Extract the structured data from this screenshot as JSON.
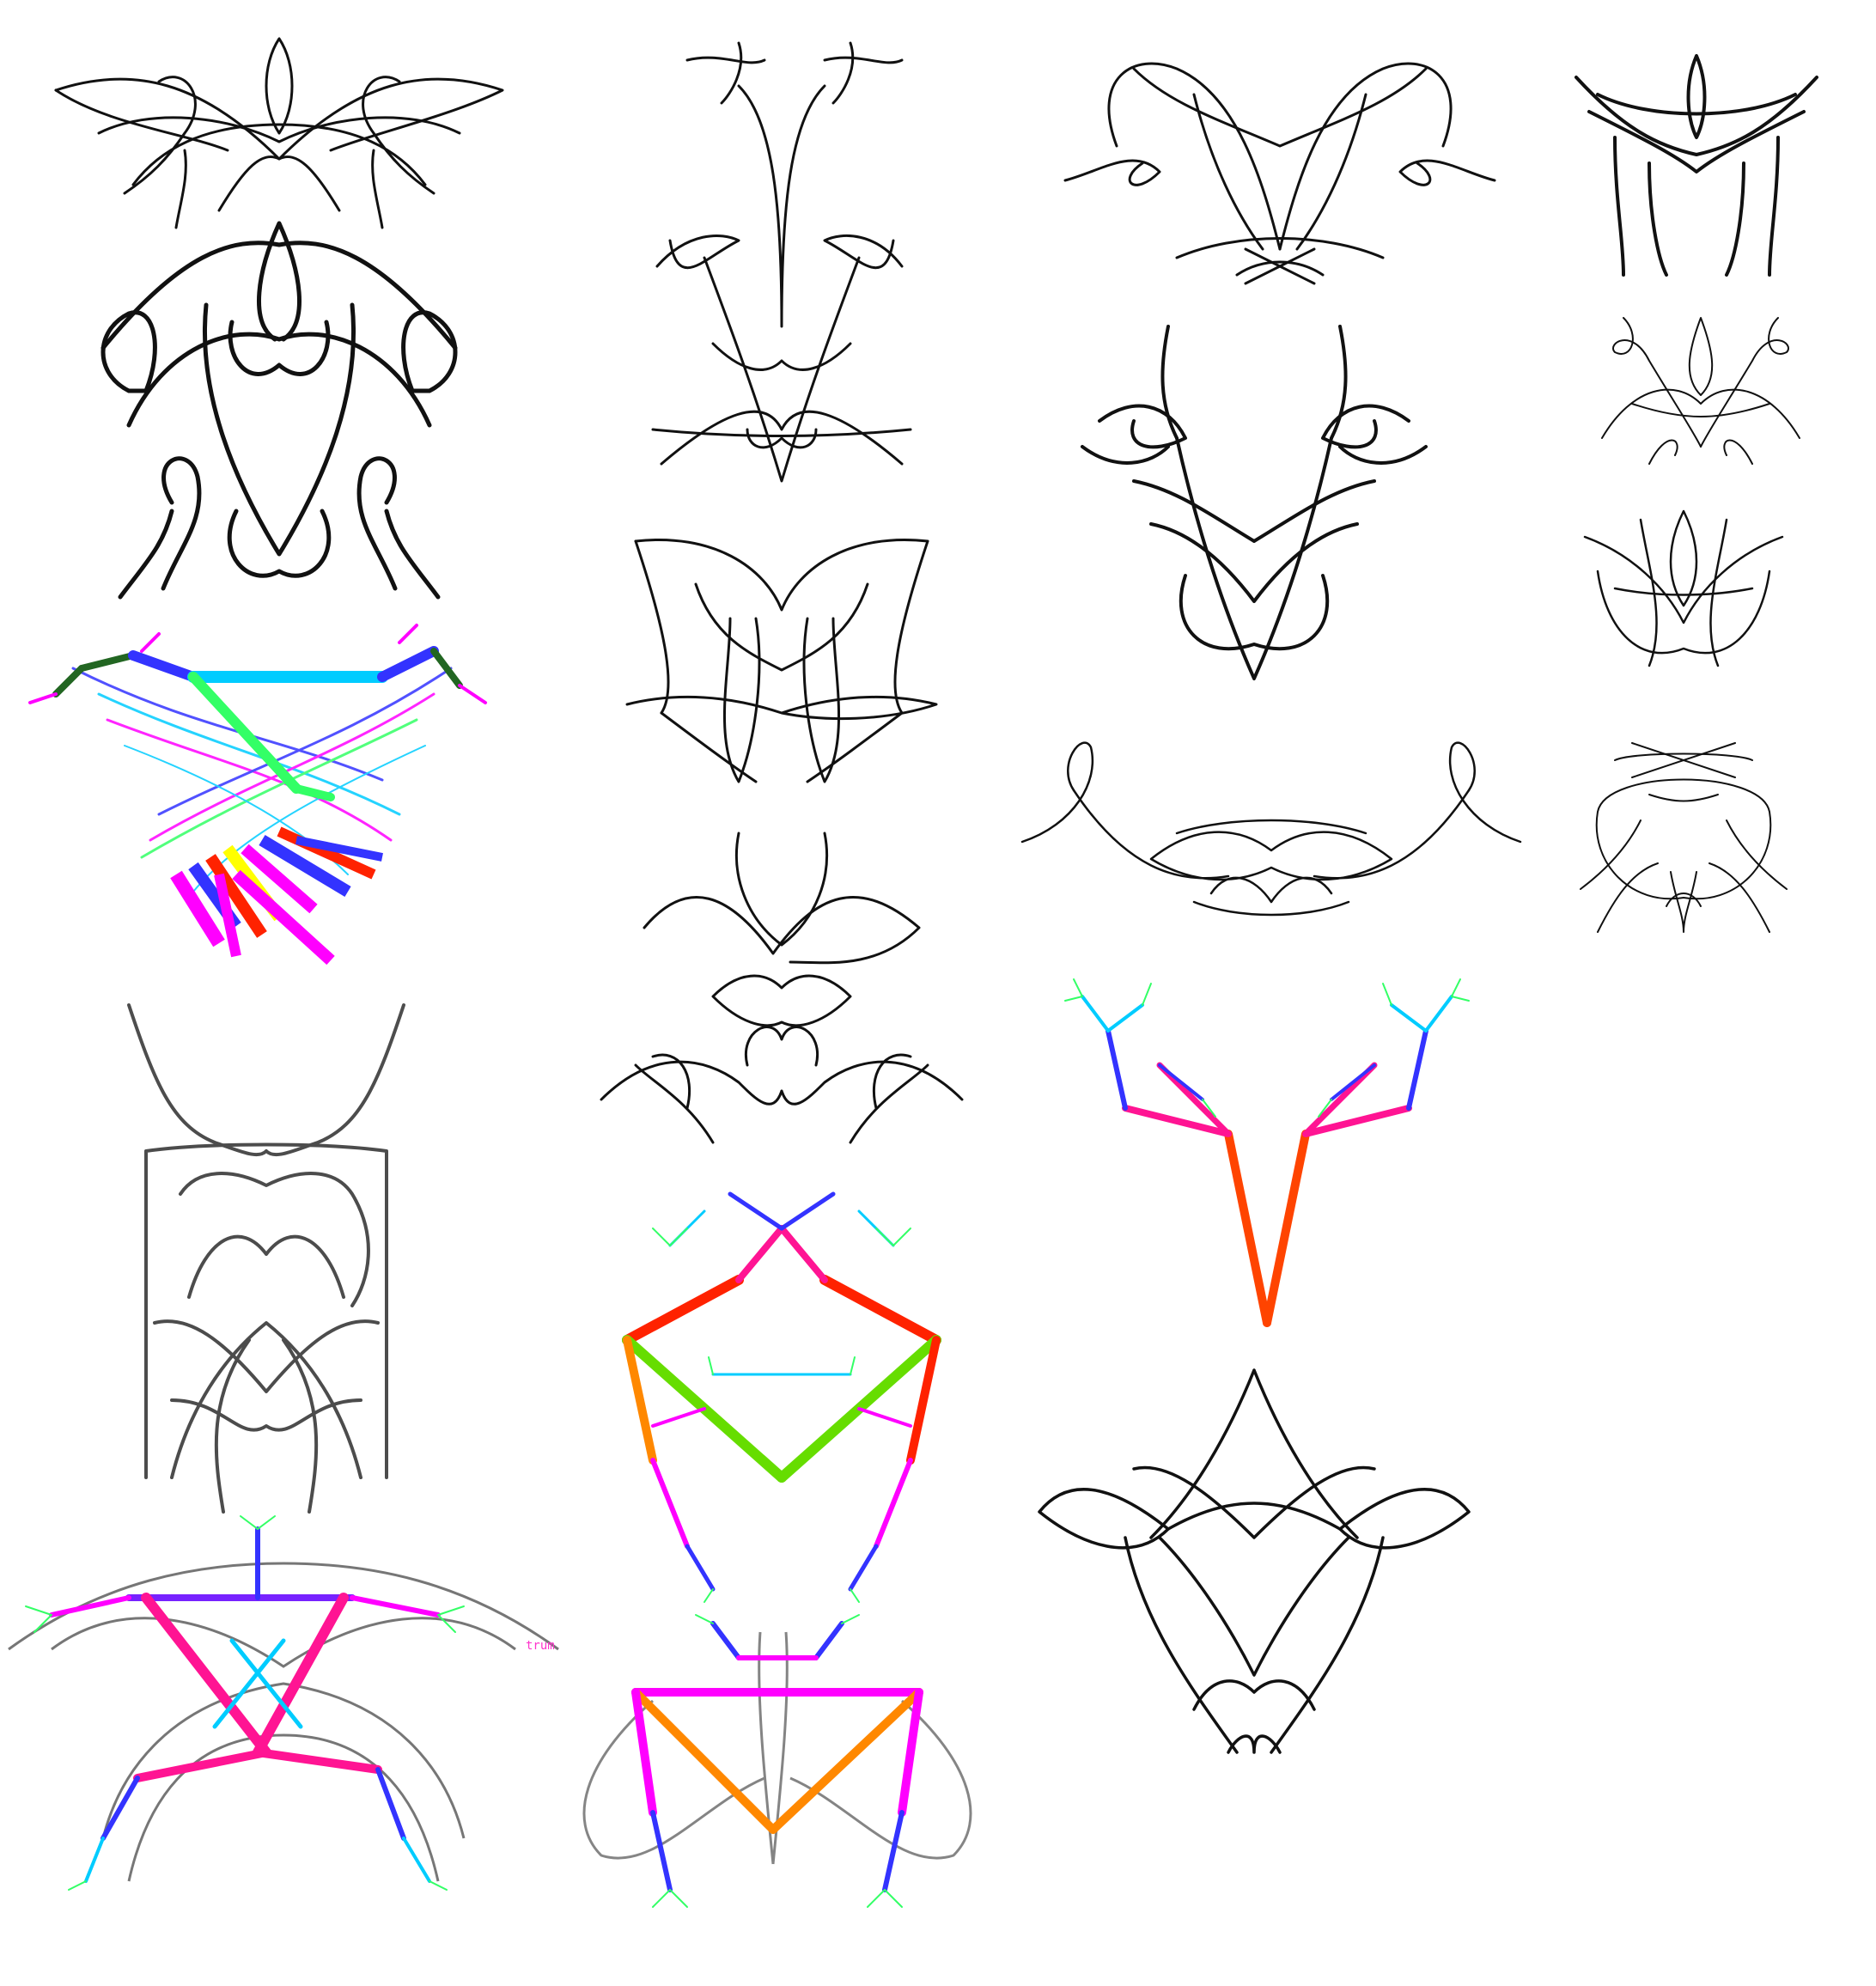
{
  "colors": {
    "ink": "#111111",
    "blur_ink": "#2a2a2a",
    "skeleton": [
      "#ff1493",
      "#ff00ff",
      "#3333ff",
      "#00ccff",
      "#33ff66",
      "#ffff00",
      "#ff2200",
      "#ff8800",
      "#66dd00"
    ],
    "label": "#ff33cc"
  },
  "labels": {
    "drum": "trum"
  }
}
